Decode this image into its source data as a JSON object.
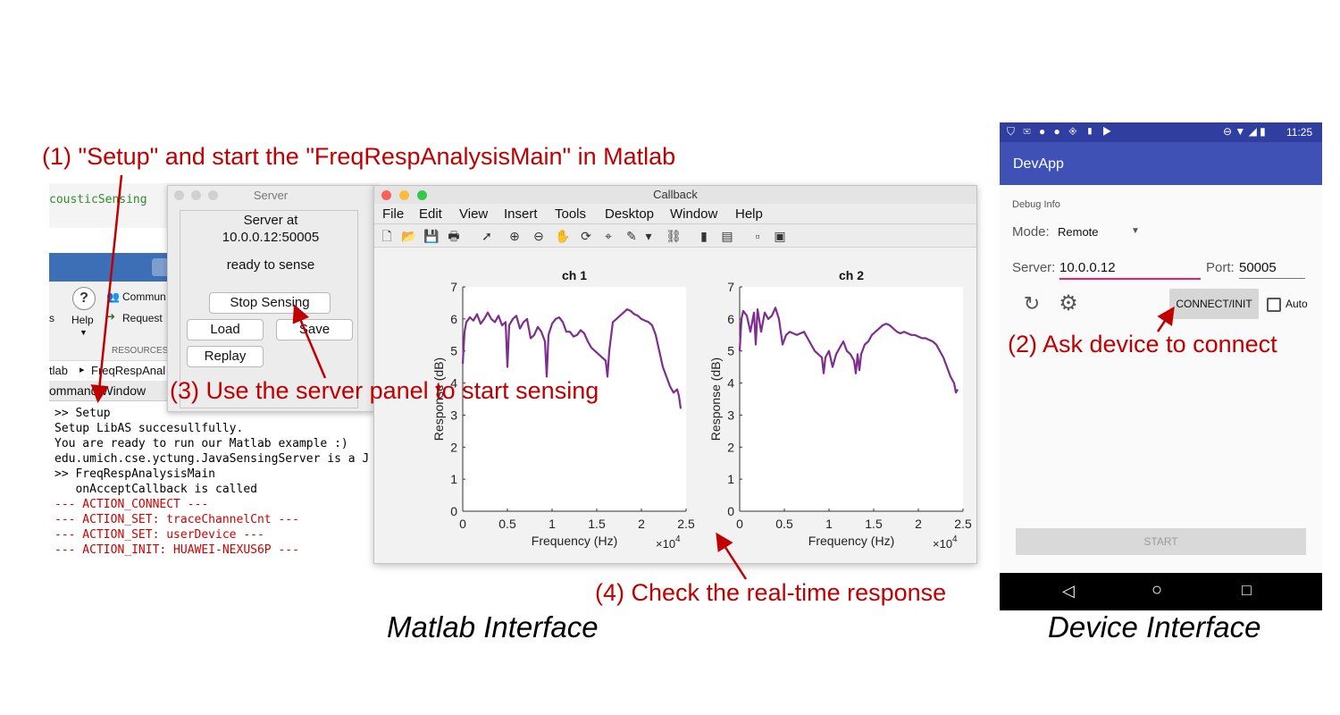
{
  "annotations": {
    "step1": "(1) \"Setup\" and start the \"FreqRespAnalysisMain\" in Matlab",
    "step2": "(2) Ask device to connect",
    "step3": "(3) Use the server panel to start sensing",
    "step4": "(4) Check the real-time response"
  },
  "captions": {
    "matlab": "Matlab Interface",
    "device": "Device Interface"
  },
  "matlab_main": {
    "project_label": "cousticSensing",
    "help_label": "Help",
    "community_label": "Commun",
    "request_label": "Request",
    "resources_label": "RESOURCES",
    "s_label": "s",
    "path_root": "tlab",
    "path_sep": "▸",
    "path_folder": "FreqRespAnal",
    "command_window_title": "ommand Window",
    "command_lines": [
      {
        "text": ">> Setup",
        "color": "#000000"
      },
      {
        "text": "Setup LibAS succesullfully.",
        "color": "#000000"
      },
      {
        "text": "You are ready to run our Matlab example :)",
        "color": "#000000"
      },
      {
        "text": "edu.umich.cse.yctung.JavaSensingServer is a J",
        "color": "#000000"
      },
      {
        "text": ">> FreqRespAnalysisMain",
        "color": "#000000"
      },
      {
        "text": "   onAcceptCallback is called",
        "color": "#000000"
      },
      {
        "text": "--- ACTION_CONNECT ---",
        "color": "#d00000"
      },
      {
        "text": "--- ACTION_SET: traceChannelCnt ---",
        "color": "#d00000"
      },
      {
        "text": "--- ACTION_SET: userDevice ---",
        "color": "#d00000"
      },
      {
        "text": "--- ACTION_INIT: HUAWEI-NEXUS6P ---",
        "color": "#d00000"
      }
    ]
  },
  "server": {
    "title": "Server",
    "line1": "Server at",
    "address": "10.0.0.12:50005",
    "status": "ready to sense",
    "stop_button": "Stop Sensing",
    "load_button": "Load",
    "save_button": "Save",
    "replay_button": "Replay"
  },
  "callback": {
    "title": "Callback",
    "menu": [
      "File",
      "Edit",
      "View",
      "Insert",
      "Tools",
      "Desktop",
      "Window",
      "Help"
    ],
    "toolbar_icons": [
      "new-file-icon",
      "open-folder-icon",
      "save-icon",
      "print-icon",
      "pointer-icon",
      "zoom-in-icon",
      "zoom-out-icon",
      "pan-icon",
      "rotate-icon",
      "data-cursor-icon",
      "brush-icon",
      "dropdown-arrow-icon",
      "link-icon",
      "colorbar-icon",
      "legend-icon",
      "hide-tools-icon",
      "dock-icon"
    ]
  },
  "chart_data": [
    {
      "type": "line",
      "title": "ch 1",
      "xlabel": "Frequency (Hz)",
      "ylabel": "Response (dB)",
      "x_multiplier": "×10^4",
      "x_ticks": [
        "0",
        "0.5",
        "1",
        "1.5",
        "2",
        "2.5"
      ],
      "y_ticks": [
        "0",
        "1",
        "2",
        "3",
        "4",
        "5",
        "6",
        "7"
      ],
      "xlim": [
        0,
        25000
      ],
      "ylim": [
        0,
        7
      ],
      "series": [
        {
          "color": "#7e2f8e",
          "x": [
            0,
            200,
            400,
            800,
            1200,
            1600,
            2000,
            2400,
            2800,
            3200,
            3600,
            4000,
            4400,
            4800,
            5000,
            5200,
            5600,
            6000,
            6400,
            6800,
            7200,
            7600,
            8000,
            8400,
            8800,
            9200,
            9400,
            9600,
            10000,
            10400,
            10800,
            11200,
            11600,
            12000,
            12400,
            12800,
            13200,
            13600,
            14000,
            14400,
            14800,
            15200,
            15600,
            16000,
            16200,
            16400,
            16800,
            17200,
            17600,
            18000,
            18400,
            18800,
            19200,
            19600,
            20000,
            20400,
            20800,
            21200,
            21600,
            22000,
            22400,
            22800,
            23200,
            23600,
            24000,
            24200,
            24400
          ],
          "y": [
            4.6,
            5.6,
            5.9,
            6.05,
            5.95,
            6.15,
            5.85,
            6.0,
            6.2,
            6.0,
            5.9,
            6.1,
            5.8,
            5.9,
            4.5,
            5.8,
            6.0,
            6.1,
            5.7,
            5.9,
            6.0,
            5.4,
            5.5,
            5.75,
            5.6,
            5.3,
            4.2,
            5.5,
            5.85,
            6.0,
            6.05,
            5.9,
            5.6,
            5.6,
            5.45,
            5.5,
            5.65,
            5.55,
            5.3,
            5.1,
            5.0,
            4.9,
            4.8,
            4.7,
            4.2,
            5.0,
            5.9,
            6.0,
            6.1,
            6.2,
            6.3,
            6.25,
            6.15,
            6.1,
            6.0,
            5.95,
            5.9,
            5.8,
            5.5,
            5.0,
            4.5,
            4.2,
            3.9,
            3.7,
            3.8,
            3.6,
            3.2
          ]
        }
      ]
    },
    {
      "type": "line",
      "title": "ch 2",
      "xlabel": "Frequency (Hz)",
      "ylabel": "Response (dB)",
      "x_multiplier": "×10^4",
      "x_ticks": [
        "0",
        "0.5",
        "1",
        "1.5",
        "2",
        "2.5"
      ],
      "y_ticks": [
        "0",
        "1",
        "2",
        "3",
        "4",
        "5",
        "6",
        "7"
      ],
      "xlim": [
        0,
        25000
      ],
      "ylim": [
        0,
        7
      ],
      "series": [
        {
          "color": "#7e2f8e",
          "x": [
            0,
            200,
            400,
            800,
            1200,
            1600,
            1800,
            2000,
            2400,
            2800,
            3200,
            3600,
            4000,
            4400,
            4800,
            5200,
            5600,
            6000,
            6400,
            6800,
            7200,
            7600,
            8000,
            8400,
            8800,
            9200,
            9400,
            9600,
            10000,
            10400,
            10800,
            11200,
            11600,
            12000,
            12400,
            12800,
            13000,
            13200,
            13400,
            13600,
            14000,
            14400,
            14800,
            15200,
            15600,
            16000,
            16400,
            16800,
            17200,
            17600,
            18000,
            18400,
            18800,
            19200,
            19600,
            20000,
            20400,
            20800,
            21200,
            21600,
            22000,
            22400,
            22800,
            23200,
            23600,
            24000,
            24200,
            24400
          ],
          "y": [
            5.0,
            6.0,
            6.25,
            6.1,
            5.6,
            6.2,
            5.2,
            6.3,
            5.6,
            6.2,
            6.0,
            6.1,
            6.35,
            6.0,
            5.2,
            5.5,
            5.6,
            5.55,
            5.5,
            5.55,
            5.6,
            5.4,
            5.2,
            5.0,
            4.9,
            4.8,
            4.3,
            4.8,
            5.0,
            4.5,
            4.9,
            5.1,
            5.3,
            5.0,
            4.9,
            4.7,
            4.3,
            4.9,
            4.4,
            4.9,
            5.2,
            5.3,
            5.5,
            5.6,
            5.7,
            5.8,
            5.85,
            5.8,
            5.7,
            5.6,
            5.55,
            5.6,
            5.55,
            5.5,
            5.5,
            5.45,
            5.4,
            5.4,
            5.35,
            5.3,
            5.2,
            5.0,
            4.8,
            4.5,
            4.2,
            4.0,
            3.7,
            3.8
          ]
        }
      ]
    }
  ],
  "phone": {
    "time": "11:25",
    "app_title": "DevApp",
    "debug_info": "Debug Info",
    "mode_label": "Mode:",
    "mode_value": "Remote",
    "server_label": "Server:",
    "server_value": "10.0.0.12",
    "port_label": "Port:",
    "port_value": "50005",
    "connect_button": "CONNECT/INIT",
    "auto_label": "Auto",
    "start_button": "START"
  }
}
